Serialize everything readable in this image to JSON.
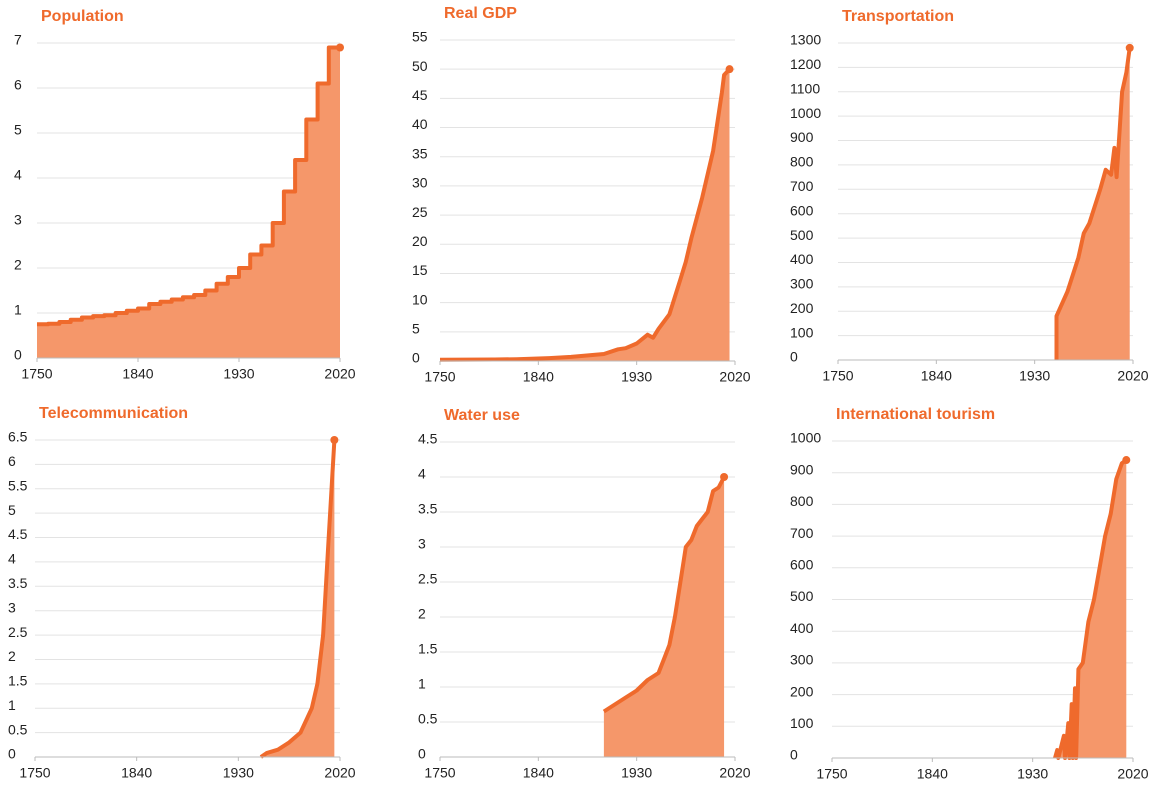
{
  "chart_data": [
    {
      "type": "area",
      "title": "Population",
      "step": true,
      "color": "#ef6a2c",
      "fill": "#f5976a",
      "grid": true,
      "x": [
        1750,
        1760,
        1770,
        1780,
        1790,
        1800,
        1810,
        1820,
        1830,
        1840,
        1850,
        1860,
        1870,
        1880,
        1890,
        1900,
        1910,
        1920,
        1930,
        1940,
        1950,
        1960,
        1970,
        1980,
        1990,
        2000,
        2010,
        2020
      ],
      "values": [
        0.75,
        0.76,
        0.8,
        0.85,
        0.9,
        0.93,
        0.95,
        1.0,
        1.05,
        1.1,
        1.2,
        1.25,
        1.3,
        1.35,
        1.4,
        1.5,
        1.65,
        1.8,
        2.0,
        2.3,
        2.5,
        3.0,
        3.7,
        4.4,
        5.3,
        6.1,
        6.9,
        6.9
      ],
      "xlim": [
        1750,
        2020
      ],
      "xticks": [
        1750,
        1840,
        1930,
        2020
      ],
      "ylim": [
        0,
        7
      ],
      "yticks": [
        0,
        1,
        2,
        3,
        4,
        5,
        6,
        7
      ]
    },
    {
      "type": "area",
      "title": "Real GDP",
      "color": "#ef6a2c",
      "fill": "#f5976a",
      "grid": true,
      "x": [
        1750,
        1800,
        1820,
        1850,
        1870,
        1900,
        1913,
        1920,
        1930,
        1940,
        1945,
        1950,
        1960,
        1970,
        1975,
        1980,
        1990,
        2000,
        2008,
        2010,
        2015
      ],
      "values": [
        0.2,
        0.25,
        0.3,
        0.5,
        0.7,
        1.2,
        2,
        2.2,
        3,
        4.5,
        4,
        5.5,
        8,
        14,
        17,
        21,
        28,
        36,
        46,
        49,
        50
      ],
      "xlim": [
        1750,
        2020
      ],
      "xticks": [
        1750,
        1840,
        1930,
        2020
      ],
      "ylim": [
        0,
        55
      ],
      "yticks": [
        0,
        5,
        10,
        15,
        20,
        25,
        30,
        35,
        40,
        45,
        50,
        55
      ]
    },
    {
      "type": "area",
      "title": "Transportation",
      "color": "#ef6a2c",
      "fill": "#f5976a",
      "grid": true,
      "x": [
        1950,
        1950,
        1960,
        1970,
        1975,
        1980,
        1990,
        1995,
        2000,
        2003,
        2005,
        2010,
        2014,
        2017
      ],
      "values": [
        0,
        180,
        280,
        420,
        520,
        560,
        700,
        780,
        760,
        870,
        750,
        1100,
        1180,
        1280
      ],
      "xlim": [
        1750,
        2020
      ],
      "xticks": [
        1750,
        1840,
        1930,
        2020
      ],
      "ylim": [
        0,
        1300
      ],
      "yticks": [
        0,
        100,
        200,
        300,
        400,
        500,
        600,
        700,
        800,
        900,
        1000,
        1100,
        1200,
        1300
      ]
    },
    {
      "type": "area",
      "title": "Telecommunication",
      "color": "#ef6a2c",
      "fill": "#f5976a",
      "grid": true,
      "x": [
        1950,
        1955,
        1965,
        1975,
        1985,
        1995,
        2000,
        2005,
        2010,
        2015
      ],
      "values": [
        0,
        0.08,
        0.15,
        0.3,
        0.5,
        1.0,
        1.5,
        2.5,
        4.5,
        6.5
      ],
      "xlim": [
        1750,
        2020
      ],
      "xticks": [
        1750,
        1840,
        1930,
        2020
      ],
      "ylim": [
        0,
        6.5
      ],
      "yticks": [
        0,
        0.5,
        1,
        1.5,
        2,
        2.5,
        3,
        3.5,
        4,
        4.5,
        5,
        5.5,
        6,
        6.5
      ]
    },
    {
      "type": "area",
      "title": "Water use",
      "color": "#ef6a2c",
      "fill": "#f5976a",
      "grid": true,
      "x": [
        1900,
        1910,
        1920,
        1930,
        1940,
        1950,
        1955,
        1960,
        1965,
        1970,
        1975,
        1980,
        1985,
        1990,
        1995,
        2000,
        2005,
        2010
      ],
      "values": [
        0.65,
        0.75,
        0.85,
        0.95,
        1.1,
        1.2,
        1.4,
        1.6,
        2.0,
        2.5,
        3.0,
        3.1,
        3.3,
        3.4,
        3.5,
        3.8,
        3.85,
        4.0
      ],
      "xlim": [
        1750,
        2020
      ],
      "xticks": [
        1750,
        1840,
        1930,
        2020
      ],
      "ylim": [
        0,
        4.5
      ],
      "yticks": [
        0,
        0.5,
        1,
        1.5,
        2,
        2.5,
        3,
        3.5,
        4,
        4.5
      ]
    },
    {
      "type": "area",
      "title": "International tourism",
      "color": "#ef6a2c",
      "fill": "#f5976a",
      "grid": true,
      "x": [
        1950,
        1952,
        1953,
        1958,
        1959,
        1962,
        1963,
        1965,
        1966,
        1968,
        1969,
        1971,
        1975,
        1980,
        1985,
        1990,
        1995,
        2000,
        2005,
        2010,
        2014
      ],
      "values": [
        0,
        25,
        0,
        70,
        0,
        110,
        0,
        170,
        0,
        220,
        0,
        280,
        300,
        430,
        500,
        600,
        700,
        770,
        880,
        930,
        940
      ],
      "xlim": [
        1750,
        2020
      ],
      "xticks": [
        1750,
        1840,
        1930,
        2020
      ],
      "ylim": [
        0,
        1000
      ],
      "yticks": [
        0,
        100,
        200,
        300,
        400,
        500,
        600,
        700,
        800,
        900,
        1000
      ]
    }
  ]
}
